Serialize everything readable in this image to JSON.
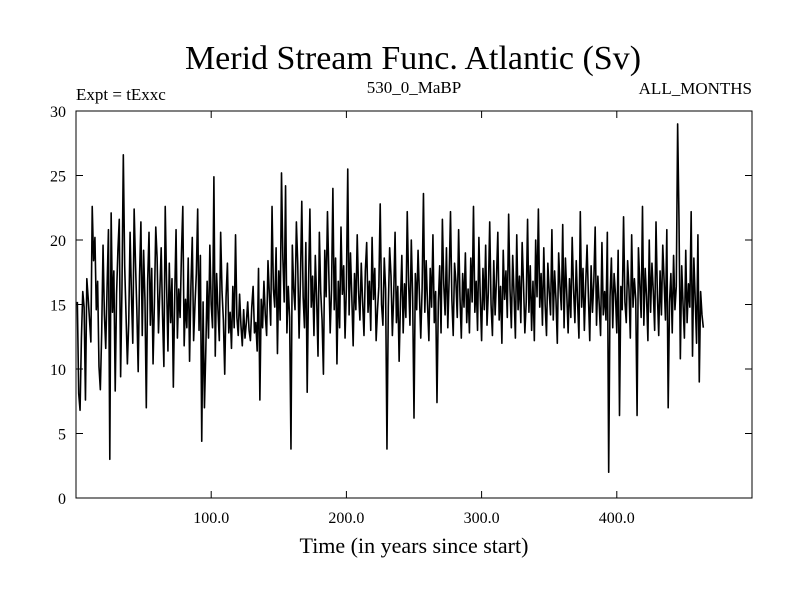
{
  "chart_data": {
    "type": "line",
    "title": "Merid Stream Func. Atlantic (Sv)",
    "subtitle_left": "Expt = tExxc",
    "subtitle_center": "530_0_MaBP",
    "subtitle_right": "ALL_MONTHS",
    "xlabel": "Time (in years since start)",
    "ylabel": "",
    "xlim": [
      0,
      500
    ],
    "ylim": [
      0,
      30
    ],
    "x_ticks": [
      {
        "value": 100,
        "label": "100.0"
      },
      {
        "value": 200,
        "label": "200.0"
      },
      {
        "value": 300,
        "label": "300.0"
      },
      {
        "value": 400,
        "label": "400.0"
      }
    ],
    "y_ticks": [
      {
        "value": 0,
        "label": "0"
      },
      {
        "value": 5,
        "label": "5"
      },
      {
        "value": 10,
        "label": "10"
      },
      {
        "value": 15,
        "label": "15"
      },
      {
        "value": 20,
        "label": "20"
      },
      {
        "value": 25,
        "label": "25"
      },
      {
        "value": 30,
        "label": "30"
      }
    ],
    "grid": false,
    "series": [
      {
        "name": "Merid Stream Func. Atlantic",
        "color": "#000000",
        "x_start": 1,
        "x_step": 1,
        "values": [
          15.2,
          8.1,
          6.8,
          12.4,
          16.0,
          14.8,
          7.6,
          17.0,
          15.5,
          13.8,
          12.1,
          22.6,
          18.4,
          20.2,
          14.6,
          16.8,
          10.2,
          8.4,
          12.8,
          19.6,
          14.2,
          11.6,
          16.4,
          20.8,
          3.0,
          22.1,
          14.4,
          17.6,
          8.3,
          15.8,
          19.2,
          21.6,
          9.4,
          16.3,
          26.6,
          18.0,
          14.2,
          10.4,
          13.6,
          20.6,
          15.8,
          12.0,
          22.4,
          18.2,
          14.6,
          9.8,
          17.2,
          21.4,
          12.6,
          19.2,
          15.4,
          7.0,
          16.8,
          20.6,
          13.4,
          17.8,
          10.4,
          15.2,
          21.0,
          18.6,
          12.8,
          16.0,
          19.4,
          14.2,
          10.2,
          22.6,
          16.6,
          11.4,
          18.2,
          13.6,
          17.0,
          8.6,
          15.6,
          20.8,
          12.4,
          16.2,
          14.0,
          19.0,
          22.6,
          11.8,
          15.4,
          13.2,
          18.6,
          10.6,
          16.4,
          20.2,
          12.2,
          15.0,
          17.4,
          22.4,
          13.0,
          18.8,
          4.4,
          15.2,
          7.0,
          11.4,
          16.8,
          12.4,
          19.6,
          15.0,
          13.2,
          24.9,
          11.0,
          17.4,
          14.6,
          12.2,
          20.6,
          16.0,
          13.8,
          9.6,
          15.6,
          18.2,
          12.8,
          14.4,
          11.6,
          16.4,
          13.2,
          20.4,
          14.0,
          12.6,
          15.8,
          13.4,
          11.8,
          14.6,
          12.4,
          13.6,
          15.2,
          13.0,
          12.2,
          14.8,
          16.4,
          12.8,
          13.6,
          11.4,
          17.8,
          7.6,
          15.4,
          13.2,
          16.8,
          14.2,
          12.6,
          18.4,
          15.8,
          13.4,
          22.6,
          16.2,
          14.8,
          19.4,
          11.2,
          17.6,
          13.8,
          25.2,
          18.6,
          15.2,
          24.2,
          12.8,
          16.4,
          14.0,
          3.8,
          19.6,
          16.2,
          14.6,
          21.4,
          18.2,
          12.4,
          16.8,
          23.0,
          15.6,
          13.2,
          19.8,
          8.2,
          16.6,
          22.4,
          14.8,
          17.2,
          12.6,
          18.8,
          15.4,
          11.0,
          20.6,
          16.0,
          13.8,
          9.6,
          19.2,
          15.6,
          22.2,
          17.4,
          12.8,
          16.2,
          24.0,
          14.6,
          18.6,
          10.4,
          16.8,
          13.2,
          21.0,
          15.8,
          18.0,
          12.4,
          16.4,
          25.5,
          14.2,
          19.0,
          15.6,
          11.8,
          17.4,
          14.6,
          20.4,
          16.0,
          13.8,
          18.2,
          15.2,
          12.6,
          17.6,
          19.8,
          14.4,
          16.8,
          13.0,
          20.2,
          15.4,
          17.8,
          12.2,
          14.6,
          16.4,
          22.8,
          15.0,
          13.4,
          18.6,
          16.2,
          3.8,
          14.8,
          19.4,
          17.2,
          12.6,
          15.8,
          20.6,
          13.6,
          16.4,
          10.6,
          15.2,
          18.8,
          12.8,
          16.6,
          14.0,
          22.2,
          16.8,
          13.4,
          20.0,
          15.6,
          6.2,
          17.4,
          14.6,
          19.2,
          15.8,
          12.4,
          16.2,
          23.6,
          14.4,
          18.4,
          15.0,
          12.2,
          17.8,
          14.8,
          20.4,
          13.6,
          16.0,
          7.4,
          15.2,
          18.0,
          12.8,
          21.6,
          16.6,
          14.2,
          19.4,
          13.2,
          17.0,
          22.2,
          15.4,
          12.6,
          18.2,
          16.8,
          14.0,
          20.8,
          15.6,
          12.4,
          17.4,
          14.8,
          19.0,
          13.6,
          16.2,
          12.8,
          18.6,
          15.2,
          22.6,
          14.4,
          16.8,
          13.0,
          20.2,
          15.6,
          12.2,
          17.8,
          14.6,
          19.6,
          13.4,
          16.0,
          21.4,
          15.0,
          12.6,
          18.4,
          14.2,
          17.0,
          20.6,
          13.8,
          16.4,
          12.0,
          19.2,
          15.4,
          17.6,
          14.0,
          22.0,
          16.2,
          13.2,
          18.8,
          15.8,
          12.4,
          20.4,
          14.6,
          17.2,
          13.6,
          19.8,
          16.6,
          12.8,
          15.2,
          21.6,
          14.4,
          18.0,
          13.0,
          16.8,
          12.2,
          20.0,
          15.6,
          22.4,
          14.8,
          17.4,
          13.4,
          19.4,
          15.0,
          12.6,
          18.2,
          16.0,
          14.2,
          20.8,
          13.8,
          17.6,
          15.4,
          12.0,
          19.0,
          16.4,
          14.6,
          21.2,
          13.2,
          18.6,
          15.8,
          12.8,
          17.0,
          14.0,
          20.2,
          16.2,
          13.6,
          18.4,
          15.2,
          12.4,
          22.2,
          14.8,
          17.8,
          13.0,
          16.6,
          19.6,
          15.6,
          12.2,
          18.0,
          14.4,
          16.8,
          21.0,
          13.4,
          17.2,
          15.0,
          12.6,
          19.8,
          14.2,
          16.0,
          13.8,
          20.6,
          2.0,
          15.6,
          18.6,
          13.2,
          17.4,
          15.8,
          12.8,
          19.2,
          6.4,
          16.4,
          14.6,
          21.8,
          15.2,
          13.6,
          18.4,
          16.2,
          12.4,
          20.4,
          14.8,
          17.0,
          15.4,
          6.4,
          19.4,
          16.6,
          14.0,
          22.6,
          13.4,
          17.8,
          15.6,
          12.2,
          20.0,
          14.4,
          18.2,
          16.0,
          13.0,
          21.4,
          15.8,
          12.6,
          17.6,
          14.2,
          19.6,
          16.8,
          13.8,
          20.8,
          7.0,
          15.2,
          17.4,
          12.8,
          18.8,
          14.6,
          16.4,
          29.0,
          21.6,
          10.8,
          18.0,
          15.0,
          12.4,
          19.2,
          13.6,
          16.6,
          14.8,
          22.2,
          11.0,
          18.6,
          15.4,
          12.0,
          20.4,
          9.0,
          16.0,
          14.2,
          13.2
        ]
      }
    ]
  }
}
